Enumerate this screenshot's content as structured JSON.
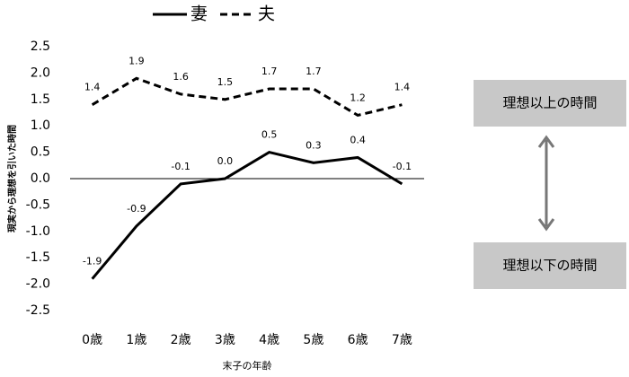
{
  "chart_data": {
    "type": "line",
    "y_label": "現実から理想を引いた時間",
    "x_label": "末子の年齢",
    "categories": [
      "0歳",
      "1歳",
      "2歳",
      "3歳",
      "4歳",
      "5歳",
      "6歳",
      "7歳"
    ],
    "series": [
      {
        "name": "妻",
        "color": "#000000",
        "line_style": "solid",
        "values": [
          -1.9,
          -0.9,
          -0.1,
          0.0,
          0.5,
          0.3,
          0.4,
          -0.1
        ],
        "value_labels": [
          "-1.9",
          "-0.9",
          "-0.1",
          "0.0",
          "0.5",
          "0.3",
          "0.4",
          "-0.1"
        ]
      },
      {
        "name": "夫",
        "color": "#000000",
        "line_style": "dashed",
        "values": [
          1.4,
          1.9,
          1.6,
          1.5,
          1.7,
          1.7,
          1.2,
          1.4
        ]
      }
    ],
    "ylim": [
      -2.5,
      2.5
    ],
    "yticks": [
      -2.5,
      {
        "value": -2,
        "label": "-2.0"
      },
      -1.5,
      {
        "value": -1,
        "label": "-1.0"
      },
      -0.5,
      {
        "value": 0,
        "label": "0.0"
      },
      0.5,
      {
        "value": 1,
        "label": "1.0"
      },
      1.5,
      {
        "value": 2,
        "label": "2.0"
      },
      2.5
    ],
    "zero_line": true,
    "legend": "top",
    "annotations": [
      "理想以上の時間",
      "理想以下の時間"
    ]
  }
}
